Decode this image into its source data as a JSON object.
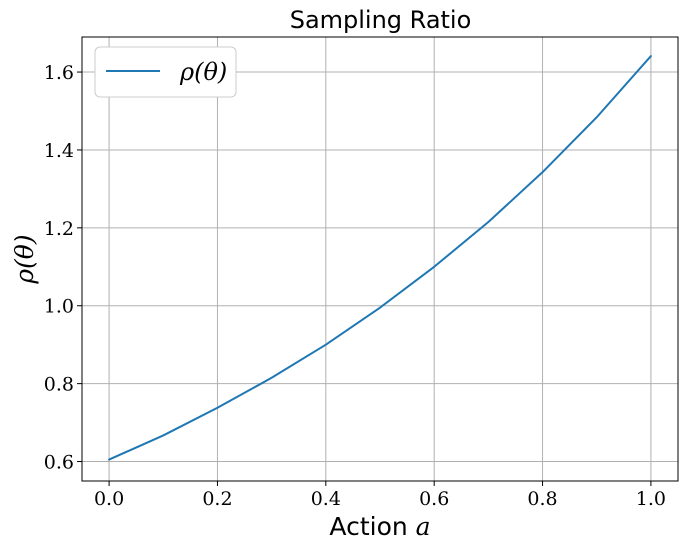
{
  "chart_data": {
    "type": "line",
    "title": "Sampling Ratio",
    "xlabel": {
      "text": "Action",
      "math": "a"
    },
    "ylabel": "ρ(θ)",
    "xlim": [
      -0.05,
      1.05
    ],
    "ylim": [
      0.55,
      1.69
    ],
    "xticks": [
      0.0,
      0.2,
      0.4,
      0.6,
      0.8,
      1.0
    ],
    "xtick_labels": [
      "0.0",
      "0.2",
      "0.4",
      "0.6",
      "0.8",
      "1.0"
    ],
    "yticks": [
      0.6,
      0.8,
      1.0,
      1.2,
      1.4,
      1.6
    ],
    "ytick_labels": [
      "0.6",
      "0.8",
      "1.0",
      "1.2",
      "1.4",
      "1.6"
    ],
    "grid": true,
    "legend": {
      "position": "top-left"
    },
    "series": [
      {
        "name": "ρ(θ)",
        "color": "#1f77b4",
        "x": [
          0.0,
          0.1,
          0.2,
          0.3,
          0.4,
          0.5,
          0.6,
          0.7,
          0.8,
          0.9,
          1.0
        ],
        "y": [
          0.605,
          0.667,
          0.738,
          0.815,
          0.9,
          0.995,
          1.1,
          1.215,
          1.343,
          1.484,
          1.641
        ]
      }
    ]
  }
}
